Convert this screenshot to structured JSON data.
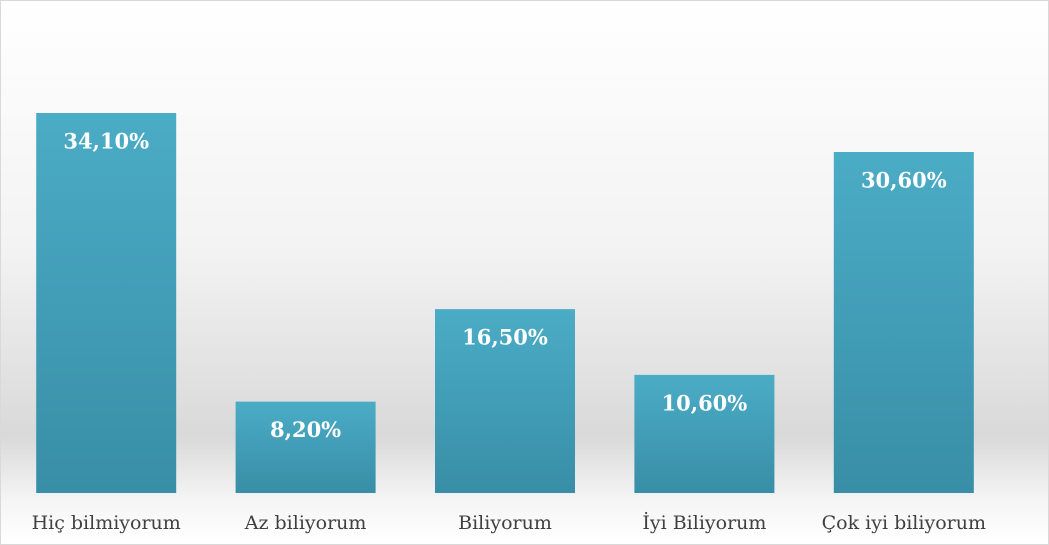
{
  "chart_data": {
    "type": "bar",
    "categories": [
      "Hiç bilmiyorum",
      "Az biliyorum",
      "Biliyorum",
      "İyi Biliyorum",
      "Çok iyi biliyorum"
    ],
    "values": [
      34.1,
      8.2,
      16.5,
      10.6,
      30.6
    ],
    "value_labels": [
      "34,10%",
      "8,20%",
      "16,50%",
      "10,60%",
      "30,60%"
    ],
    "color": "#4bacc6"
  }
}
